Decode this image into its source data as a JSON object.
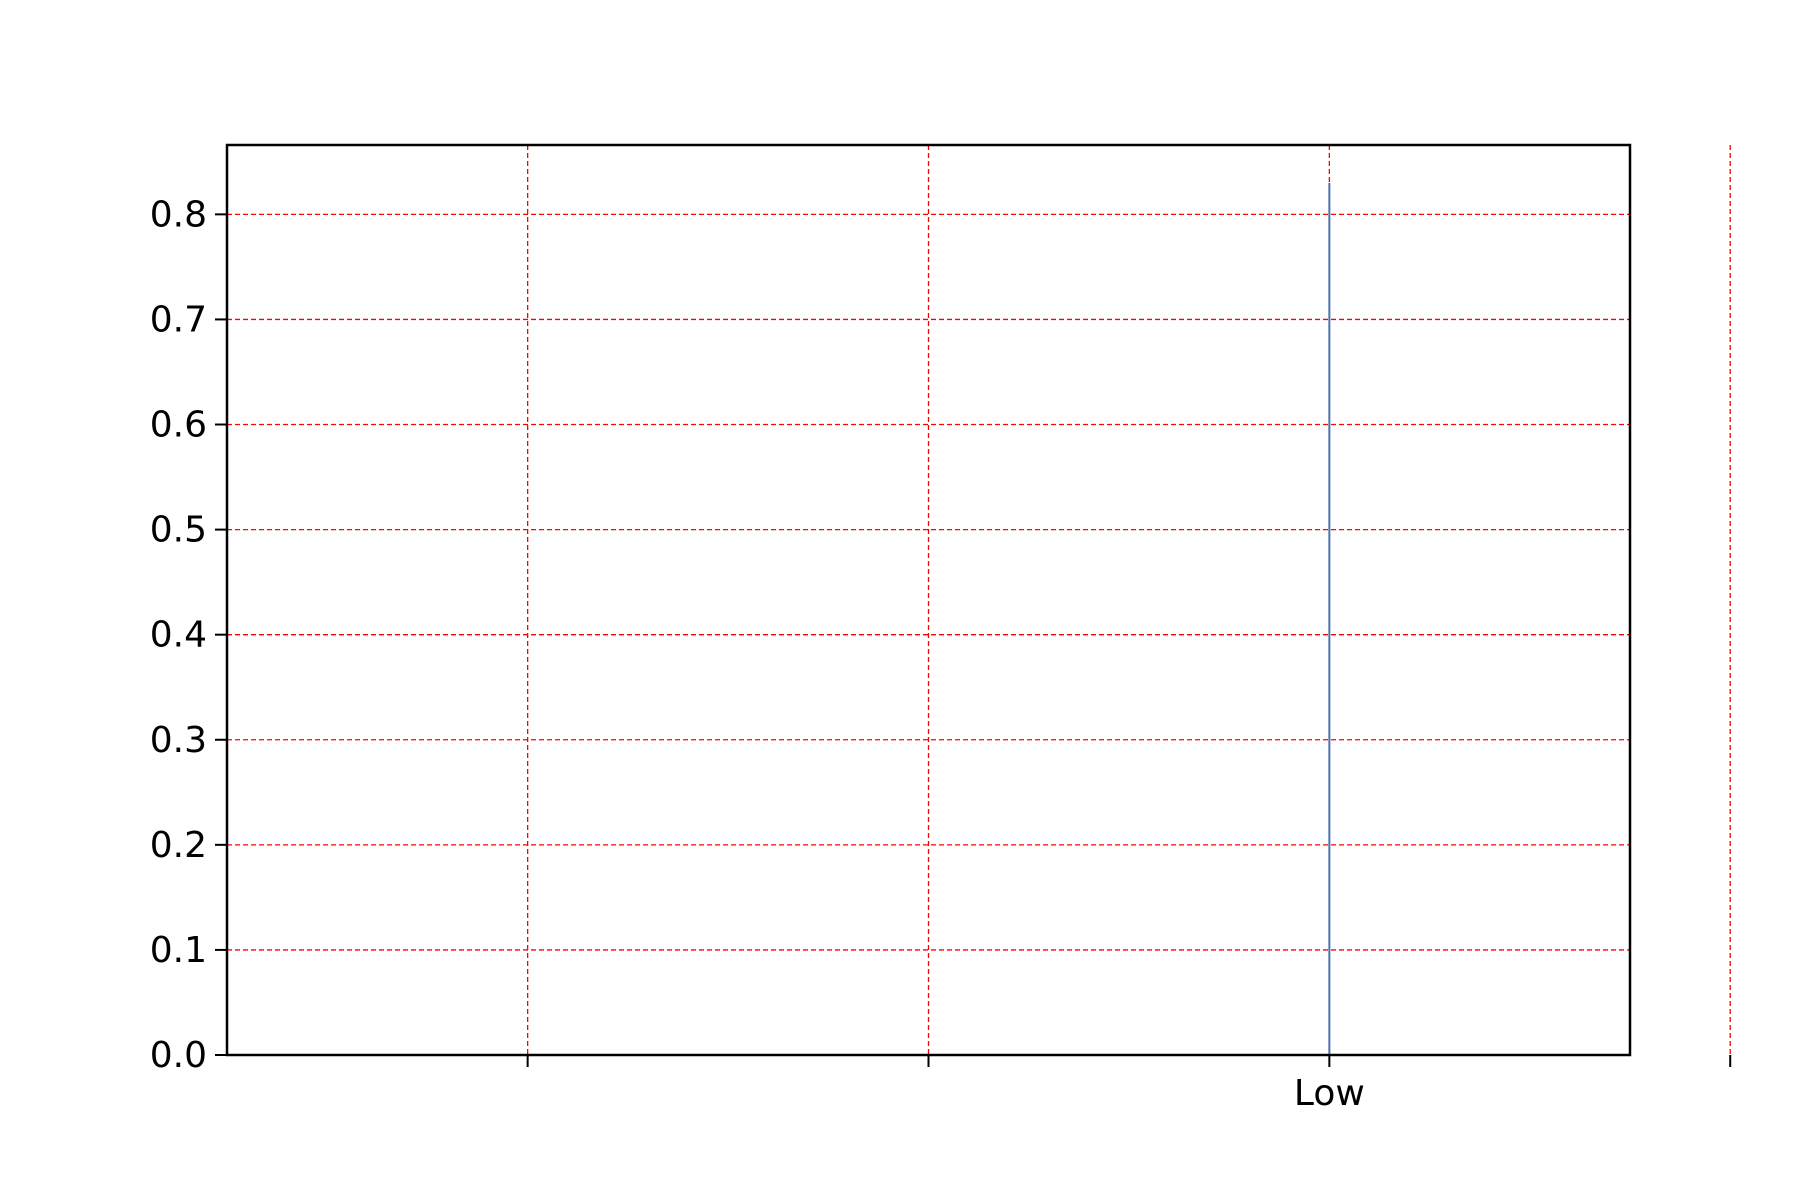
{
  "chart_data": {
    "type": "bar",
    "title": "",
    "xlabel": "",
    "ylabel": "",
    "categories": [
      "",
      "",
      "Low",
      "",
      ""
    ],
    "values": [
      0,
      0,
      0.83,
      0,
      0
    ],
    "ylim": [
      0,
      0.866
    ],
    "xlim": [
      -0.75,
      2.75
    ],
    "yticks": [
      0.0,
      0.1,
      0.2,
      0.3,
      0.4,
      0.5,
      0.6,
      0.7,
      0.8
    ],
    "ytick_labels": [
      "0.0",
      "0.1",
      "0.2",
      "0.3",
      "0.4",
      "0.5",
      "0.6",
      "0.7",
      "0.8"
    ],
    "grid": true,
    "legend": "none",
    "colors": {
      "bar": "#4c72b0",
      "grid": "#ff0000",
      "axes": "#000000"
    }
  }
}
